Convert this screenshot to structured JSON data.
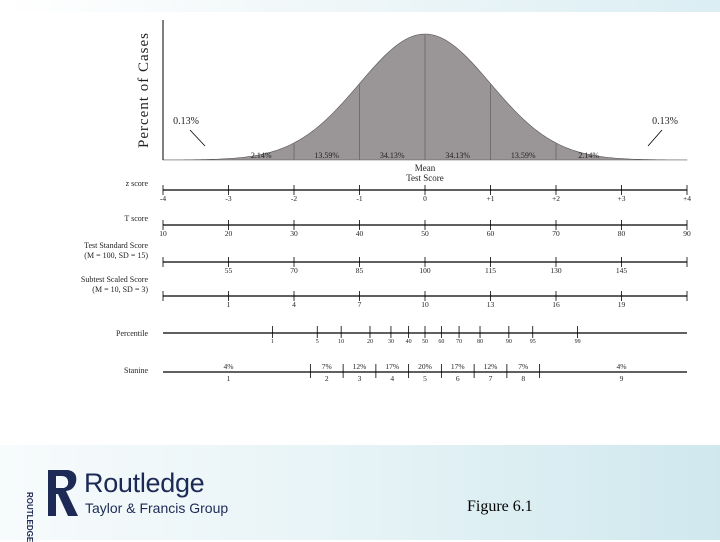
{
  "chart_data": {
    "type": "area",
    "ylabel": "Percent of Cases",
    "xlabel": "Mean\nTest Score",
    "x_range": [
      -4,
      4
    ],
    "curve": "normal distribution",
    "curve_color": "#9a9597",
    "tail_labels": [
      {
        "x": -3.7,
        "text": "0.13%"
      },
      {
        "x": 3.7,
        "text": "0.13%"
      }
    ],
    "area_labels": [
      {
        "x": -2.5,
        "text": "2.14%"
      },
      {
        "x": -1.5,
        "text": "13.59%"
      },
      {
        "x": -0.5,
        "text": "34.13%"
      },
      {
        "x": 0.5,
        "text": "34.13%"
      },
      {
        "x": 1.5,
        "text": "13.59%"
      },
      {
        "x": 2.5,
        "text": "2.14%"
      }
    ],
    "scales": [
      {
        "label": "z score",
        "values": [
          "-4",
          "-3",
          "-2",
          "-1",
          "0",
          "+1",
          "+2",
          "+3",
          "+4"
        ]
      },
      {
        "label": "T score",
        "values": [
          "10",
          "20",
          "30",
          "40",
          "50",
          "60",
          "70",
          "80",
          "90"
        ]
      },
      {
        "label": "Test Standard Score\n(M = 100, SD = 15)",
        "values": [
          "",
          "55",
          "70",
          "85",
          "100",
          "115",
          "130",
          "145",
          ""
        ]
      },
      {
        "label": "Subtest Scaled Score\n(M = 10, SD = 3)",
        "values": [
          "",
          "1",
          "4",
          "7",
          "10",
          "13",
          "16",
          "19",
          ""
        ]
      }
    ],
    "percentile": {
      "label": "Percentile",
      "ticks": [
        {
          "z": -2.33,
          "text": "1"
        },
        {
          "z": -1.645,
          "text": "5"
        },
        {
          "z": -1.28,
          "text": "10"
        },
        {
          "z": -0.84,
          "text": "20"
        },
        {
          "z": -0.52,
          "text": "30"
        },
        {
          "z": -0.25,
          "text": "40"
        },
        {
          "z": 0.0,
          "text": "50"
        },
        {
          "z": 0.25,
          "text": "60"
        },
        {
          "z": 0.52,
          "text": "70"
        },
        {
          "z": 0.84,
          "text": "80"
        },
        {
          "z": 1.28,
          "text": "90"
        },
        {
          "z": 1.645,
          "text": "95"
        },
        {
          "z": 2.33,
          "text": "99"
        }
      ]
    },
    "stanine": {
      "label": "Stanine",
      "boundaries": [
        -1.75,
        -1.25,
        -0.75,
        -0.25,
        0.25,
        0.75,
        1.25,
        1.75
      ],
      "bands": [
        {
          "center": -3.0,
          "percent": "4%",
          "number": "1"
        },
        {
          "center": -1.5,
          "percent": "7%",
          "number": "2"
        },
        {
          "center": -1.0,
          "percent": "12%",
          "number": "3"
        },
        {
          "center": -0.5,
          "percent": "17%",
          "number": "4"
        },
        {
          "center": 0.0,
          "percent": "20%",
          "number": "5"
        },
        {
          "center": 0.5,
          "percent": "17%",
          "number": "6"
        },
        {
          "center": 1.0,
          "percent": "12%",
          "number": "7"
        },
        {
          "center": 1.5,
          "percent": "7%",
          "number": "8"
        },
        {
          "center": 3.0,
          "percent": "4%",
          "number": "9"
        }
      ]
    }
  },
  "brand": {
    "name": "Routledge",
    "subtitle": "Taylor & Francis Group",
    "side_text": "ROUTLEDGE"
  },
  "caption": "Figure 6.1",
  "colors": {
    "brand": "#1c2a55",
    "axis": "#000000",
    "curve_fill": "#9a9597"
  }
}
